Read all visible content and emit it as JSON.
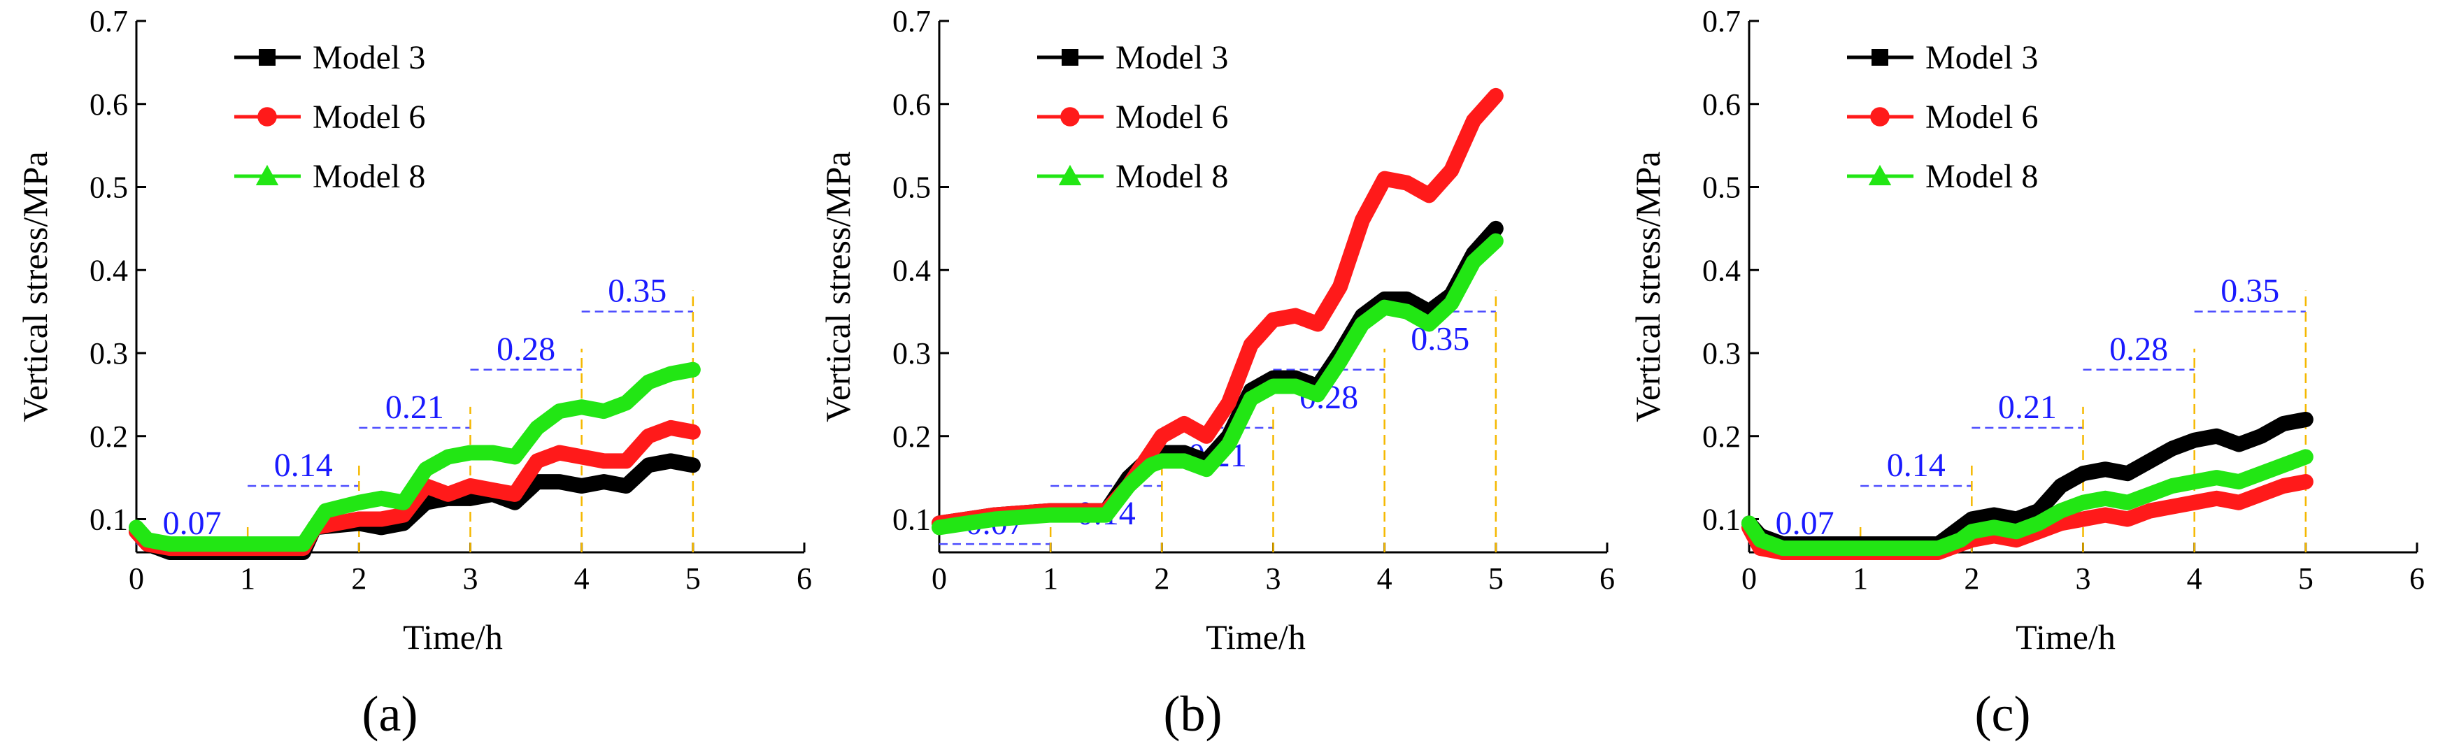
{
  "colors": {
    "model3": "#000000",
    "model6": "#ff1a1a",
    "model8": "#22e614",
    "guide_vertical": "#f5b800",
    "guide_horizontal": "#4d4dff",
    "stage_label": "#1a1aff",
    "axis": "#000000"
  },
  "chart_data": [
    {
      "type": "line",
      "panel_label": "(a)",
      "xlabel": "Time/h",
      "ylabel": "Vertical stress/MPa",
      "xlim": [
        0,
        6
      ],
      "ylim": [
        0.06,
        0.7
      ],
      "xticks": [
        0,
        1,
        2,
        3,
        4,
        5,
        6
      ],
      "yticks": [
        0.1,
        0.2,
        0.3,
        0.4,
        0.5,
        0.6,
        0.7
      ],
      "legend": [
        "Model 3",
        "Model 6",
        "Model 8"
      ],
      "stages": [
        {
          "value": 0.07,
          "label": "0.07",
          "t_start": 0,
          "t_end": 1,
          "label_side": "above"
        },
        {
          "value": 0.14,
          "label": "0.14",
          "t_start": 1,
          "t_end": 2,
          "label_side": "above"
        },
        {
          "value": 0.21,
          "label": "0.21",
          "t_start": 2,
          "t_end": 3,
          "label_side": "above"
        },
        {
          "value": 0.28,
          "label": "0.28",
          "t_start": 3,
          "t_end": 4,
          "label_side": "above"
        },
        {
          "value": 0.35,
          "label": "0.35",
          "t_start": 4,
          "t_end": 5,
          "label_side": "above"
        }
      ],
      "series": [
        {
          "name": "Model 3",
          "marker": "square",
          "x": [
            0,
            0.1,
            0.3,
            1.0,
            1.5,
            1.6,
            2.0,
            2.2,
            2.4,
            2.6,
            2.8,
            3.0,
            3.2,
            3.4,
            3.6,
            3.8,
            4.0,
            4.2,
            4.4,
            4.6,
            4.8,
            5.0
          ],
          "y": [
            0.085,
            0.07,
            0.06,
            0.06,
            0.06,
            0.09,
            0.095,
            0.09,
            0.095,
            0.12,
            0.125,
            0.125,
            0.13,
            0.12,
            0.145,
            0.145,
            0.14,
            0.145,
            0.14,
            0.165,
            0.17,
            0.165
          ]
        },
        {
          "name": "Model 6",
          "marker": "circle",
          "x": [
            0,
            0.1,
            0.3,
            1.0,
            1.5,
            1.6,
            2.0,
            2.2,
            2.4,
            2.6,
            2.8,
            3.0,
            3.2,
            3.4,
            3.6,
            3.8,
            4.0,
            4.2,
            4.4,
            4.6,
            4.8,
            5.0
          ],
          "y": [
            0.085,
            0.07,
            0.065,
            0.065,
            0.065,
            0.09,
            0.1,
            0.1,
            0.105,
            0.14,
            0.13,
            0.14,
            0.135,
            0.13,
            0.17,
            0.18,
            0.175,
            0.17,
            0.17,
            0.2,
            0.21,
            0.205
          ]
        },
        {
          "name": "Model 8",
          "marker": "triangle",
          "x": [
            0,
            0.1,
            0.3,
            1.0,
            1.5,
            1.7,
            2.0,
            2.2,
            2.4,
            2.6,
            2.8,
            3.0,
            3.2,
            3.4,
            3.6,
            3.8,
            4.0,
            4.2,
            4.4,
            4.6,
            4.8,
            5.0
          ],
          "y": [
            0.09,
            0.075,
            0.07,
            0.07,
            0.07,
            0.11,
            0.12,
            0.125,
            0.12,
            0.16,
            0.175,
            0.18,
            0.18,
            0.175,
            0.21,
            0.23,
            0.235,
            0.23,
            0.24,
            0.265,
            0.275,
            0.28
          ]
        }
      ]
    },
    {
      "type": "line",
      "panel_label": "(b)",
      "xlabel": "Time/h",
      "ylabel": "Vertical stress/MPa",
      "xlim": [
        0,
        6
      ],
      "ylim": [
        0.06,
        0.7
      ],
      "xticks": [
        0,
        1,
        2,
        3,
        4,
        5,
        6
      ],
      "yticks": [
        0.1,
        0.2,
        0.3,
        0.4,
        0.5,
        0.6,
        0.7
      ],
      "legend": [
        "Model 3",
        "Model 6",
        "Model 8"
      ],
      "stages": [
        {
          "value": 0.07,
          "label": "0.07",
          "t_start": 0,
          "t_end": 1,
          "label_side": "above"
        },
        {
          "value": 0.14,
          "label": "0.14",
          "t_start": 1,
          "t_end": 2,
          "label_side": "below"
        },
        {
          "value": 0.21,
          "label": "0.21",
          "t_start": 2,
          "t_end": 3,
          "label_side": "below"
        },
        {
          "value": 0.28,
          "label": "0.28",
          "t_start": 3,
          "t_end": 4,
          "label_side": "below"
        },
        {
          "value": 0.35,
          "label": "0.35",
          "t_start": 4,
          "t_end": 5,
          "label_side": "below"
        }
      ],
      "series": [
        {
          "name": "Model 3",
          "marker": "square",
          "x": [
            0,
            0.5,
            1.0,
            1.5,
            1.7,
            1.9,
            2.0,
            2.2,
            2.4,
            2.6,
            2.8,
            3.0,
            3.2,
            3.4,
            3.6,
            3.8,
            4.0,
            4.2,
            4.4,
            4.6,
            4.8,
            5.0
          ],
          "y": [
            0.095,
            0.105,
            0.11,
            0.11,
            0.15,
            0.175,
            0.18,
            0.18,
            0.17,
            0.2,
            0.255,
            0.27,
            0.27,
            0.26,
            0.3,
            0.345,
            0.365,
            0.365,
            0.35,
            0.37,
            0.42,
            0.45
          ]
        },
        {
          "name": "Model 6",
          "marker": "circle",
          "x": [
            0,
            0.5,
            1.0,
            1.5,
            1.7,
            1.9,
            2.0,
            2.2,
            2.4,
            2.6,
            2.8,
            3.0,
            3.2,
            3.4,
            3.6,
            3.8,
            4.0,
            4.2,
            4.4,
            4.6,
            4.8,
            5.0
          ],
          "y": [
            0.095,
            0.105,
            0.11,
            0.11,
            0.14,
            0.18,
            0.2,
            0.215,
            0.2,
            0.24,
            0.31,
            0.34,
            0.345,
            0.335,
            0.38,
            0.46,
            0.51,
            0.505,
            0.49,
            0.52,
            0.58,
            0.61
          ]
        },
        {
          "name": "Model 8",
          "marker": "triangle",
          "x": [
            0,
            0.5,
            1.0,
            1.5,
            1.7,
            1.9,
            2.0,
            2.2,
            2.4,
            2.6,
            2.8,
            3.0,
            3.2,
            3.4,
            3.6,
            3.8,
            4.0,
            4.2,
            4.4,
            4.6,
            4.8,
            5.0
          ],
          "y": [
            0.09,
            0.1,
            0.105,
            0.105,
            0.14,
            0.165,
            0.17,
            0.17,
            0.16,
            0.19,
            0.245,
            0.26,
            0.26,
            0.25,
            0.29,
            0.335,
            0.355,
            0.35,
            0.335,
            0.36,
            0.41,
            0.435
          ]
        }
      ]
    },
    {
      "type": "line",
      "panel_label": "(c)",
      "xlabel": "Time/h",
      "ylabel": "Vertical stress/MPa",
      "xlim": [
        0,
        6
      ],
      "ylim": [
        0.06,
        0.7
      ],
      "xticks": [
        0,
        1,
        2,
        3,
        4,
        5,
        6
      ],
      "yticks": [
        0.1,
        0.2,
        0.3,
        0.4,
        0.5,
        0.6,
        0.7
      ],
      "legend": [
        "Model 3",
        "Model 6",
        "Model 8"
      ],
      "stages": [
        {
          "value": 0.07,
          "label": "0.07",
          "t_start": 0,
          "t_end": 1,
          "label_side": "above"
        },
        {
          "value": 0.14,
          "label": "0.14",
          "t_start": 1,
          "t_end": 2,
          "label_side": "above"
        },
        {
          "value": 0.21,
          "label": "0.21",
          "t_start": 2,
          "t_end": 3,
          "label_side": "above"
        },
        {
          "value": 0.28,
          "label": "0.28",
          "t_start": 3,
          "t_end": 4,
          "label_side": "above"
        },
        {
          "value": 0.35,
          "label": "0.35",
          "t_start": 4,
          "t_end": 5,
          "label_side": "above"
        }
      ],
      "series": [
        {
          "name": "Model 3",
          "marker": "square",
          "x": [
            0,
            0.1,
            0.3,
            1.0,
            1.7,
            1.9,
            2.0,
            2.2,
            2.4,
            2.6,
            2.8,
            3.0,
            3.2,
            3.4,
            3.6,
            3.8,
            4.0,
            4.2,
            4.4,
            4.6,
            4.8,
            5.0
          ],
          "y": [
            0.095,
            0.08,
            0.07,
            0.07,
            0.07,
            0.09,
            0.1,
            0.105,
            0.1,
            0.11,
            0.14,
            0.155,
            0.16,
            0.155,
            0.17,
            0.185,
            0.195,
            0.2,
            0.19,
            0.2,
            0.215,
            0.22
          ]
        },
        {
          "name": "Model 6",
          "marker": "circle",
          "x": [
            0,
            0.1,
            0.3,
            1.0,
            1.7,
            1.9,
            2.0,
            2.2,
            2.4,
            2.6,
            2.8,
            3.0,
            3.2,
            3.4,
            3.6,
            3.8,
            4.0,
            4.2,
            4.4,
            4.6,
            4.8,
            5.0
          ],
          "y": [
            0.09,
            0.065,
            0.06,
            0.06,
            0.06,
            0.07,
            0.075,
            0.08,
            0.075,
            0.085,
            0.095,
            0.1,
            0.105,
            0.1,
            0.11,
            0.115,
            0.12,
            0.125,
            0.12,
            0.13,
            0.14,
            0.145
          ]
        },
        {
          "name": "Model 8",
          "marker": "triangle",
          "x": [
            0,
            0.1,
            0.3,
            1.0,
            1.7,
            1.9,
            2.0,
            2.2,
            2.4,
            2.6,
            2.8,
            3.0,
            3.2,
            3.4,
            3.6,
            3.8,
            4.0,
            4.2,
            4.4,
            4.6,
            4.8,
            5.0
          ],
          "y": [
            0.095,
            0.075,
            0.065,
            0.065,
            0.065,
            0.075,
            0.085,
            0.09,
            0.085,
            0.095,
            0.11,
            0.12,
            0.125,
            0.12,
            0.13,
            0.14,
            0.145,
            0.15,
            0.145,
            0.155,
            0.165,
            0.175
          ]
        }
      ]
    }
  ]
}
